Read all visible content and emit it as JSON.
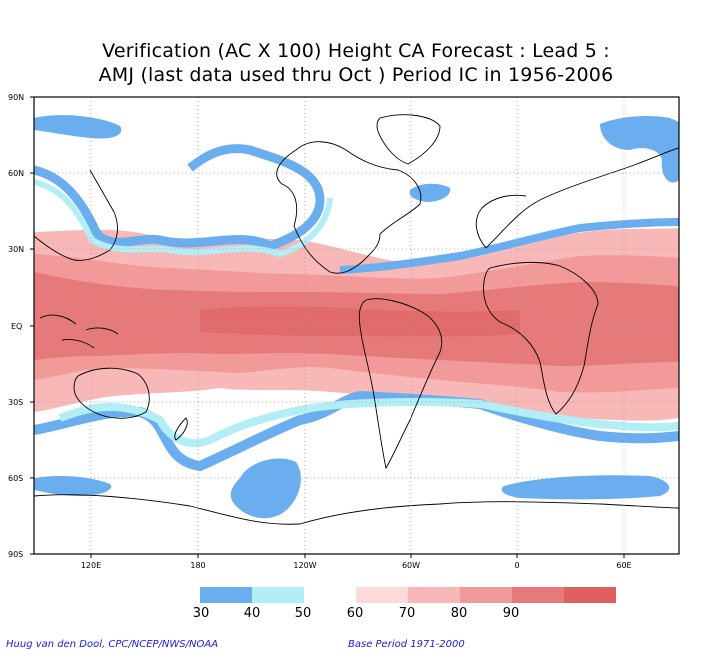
{
  "title": {
    "line1": "Verification (AC X 100) Height CA Forecast : Lead 5 :",
    "line2": "AMJ (last data used thru Oct ) Period IC in 1956-2006"
  },
  "map": {
    "lat_labels": [
      "90N",
      "60N",
      "30N",
      "EQ",
      "30S",
      "60S",
      "90S"
    ],
    "lon_labels": [
      "120E",
      "180",
      "120W",
      "60W",
      "0",
      "60E"
    ],
    "grid": true
  },
  "legend": {
    "labels": [
      "30",
      "40",
      "50",
      "60",
      "70",
      "80",
      "90"
    ],
    "colors": [
      "#6aaef0",
      "#b2eef6",
      "#ffffff",
      "#fcdada",
      "#f9b8b8",
      "#f29a9a",
      "#e67a7a",
      "#dd5f5f"
    ]
  },
  "footer": {
    "left": "Huug van den Dool, CPC/NCEP/NWS/NOAA",
    "right": "Base Period 1971-2000"
  }
}
